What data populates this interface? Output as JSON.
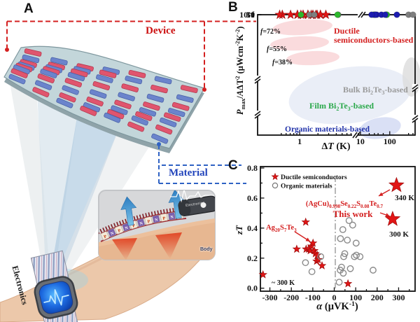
{
  "panels": {
    "a": {
      "label": "A",
      "device": "Device",
      "material": "Material",
      "electronics": "Electronics",
      "inset": {
        "electronics": "Electronics",
        "body": "Body",
        "p": "P",
        "n": "N"
      }
    },
    "b": {
      "label": "B"
    },
    "c": {
      "label": "C"
    }
  },
  "colors": {
    "star_red": "#e11515",
    "film_green": "#2db82d",
    "bulk_gray": "#7f7f7f",
    "organic_blue": "#1c1cb0",
    "label_red": "#cc1111",
    "label_blue": "#2233aa",
    "label_green": "#2aa84a",
    "label_gray": "#9a9a9a",
    "accent_blue": "#2244bb"
  },
  "chart_data": [
    {
      "id": "panel_b",
      "type": "scatter",
      "x_scale": "log-broken",
      "y_scale": "log-broken",
      "xlabel_tokens": [
        [
          "Δ",
          "n"
        ],
        [
          "T",
          "i"
        ],
        [
          " (K)",
          "n"
        ]
      ],
      "ylabel_tokens": [
        [
          "P",
          "i"
        ],
        [
          "max",
          "sub"
        ],
        [
          "/",
          "n"
        ],
        [
          "A",
          "i"
        ],
        [
          "ΔT",
          "n"
        ],
        [
          "2",
          "sup"
        ],
        [
          " (μWcm",
          "n"
        ],
        [
          "-2",
          "sup"
        ],
        [
          "K",
          "n"
        ],
        [
          "-2",
          "sup"
        ],
        [
          ")",
          "n"
        ]
      ],
      "x_ticks": [
        {
          "v": 1,
          "label": "1"
        },
        {
          "v": 10,
          "label": "10"
        },
        {
          "v": 100,
          "label": "100"
        }
      ],
      "y_ticks": [
        {
          "v": 50,
          "label": "50"
        },
        {
          "v": 10,
          "label": "10"
        },
        {
          "v": 1,
          "label": "1"
        },
        {
          "v": 1e-05,
          "label": "10⁻⁵"
        }
      ],
      "series": [
        {
          "name": "ductile-f72",
          "marker": "star",
          "color": "#e11515",
          "points": [
            [
              0.52,
              33
            ],
            [
              1.05,
              33
            ],
            [
              1.55,
              33
            ],
            [
              2.2,
              33
            ]
          ]
        },
        {
          "name": "ductile-f55",
          "marker": "star",
          "color": "#e11515",
          "points": [
            [
              0.47,
              19
            ],
            [
              0.71,
              19
            ],
            [
              0.92,
              19
            ],
            [
              1.14,
              19
            ],
            [
              1.37,
              19
            ],
            [
              1.65,
              19
            ],
            [
              1.94,
              19
            ]
          ]
        },
        {
          "name": "ductile-f38",
          "marker": "star",
          "color": "#e11515",
          "points": [
            [
              0.92,
              11
            ],
            [
              1.14,
              11
            ],
            [
              1.37,
              11
            ],
            [
              1.65,
              11
            ],
            [
              1.85,
              11
            ],
            [
              2.2,
              11
            ],
            [
              2.7,
              11
            ]
          ]
        },
        {
          "name": "bulk-bi2te3",
          "marker": "dot",
          "color": "#7f7f7f",
          "points": [
            [
              1.45,
              1
            ],
            [
              1.74,
              1
            ],
            [
              4.3,
              1
            ],
            [
              200,
              4.4
            ],
            [
              300,
              1.8
            ]
          ]
        },
        {
          "name": "film-bi2te3",
          "marker": "dot",
          "color": "#2db82d",
          "points": [
            [
              1.05,
              0.12
            ],
            [
              4.2,
              2.6
            ],
            [
              32,
              3.1
            ],
            [
              77,
              0.15
            ],
            [
              28,
              0.0017
            ],
            [
              80,
              0.0011
            ]
          ]
        },
        {
          "name": "organic",
          "marker": "dot",
          "color": "#1c1cb0",
          "points": [
            [
              36,
              3e-05
            ],
            [
              31,
              4e-06
            ],
            [
              24,
              1.5e-06
            ],
            [
              52,
              8e-05
            ],
            [
              70,
              7e-05
            ],
            [
              130,
              1.5e-05
            ]
          ]
        }
      ],
      "annotations": {
        "f72": "f=72%",
        "f55": "f=55%",
        "f38": "f=38%",
        "ductile_line1": "Ductile",
        "ductile_line2": "semiconductors-based",
        "bulk_tokens": [
          [
            "Bulk Bi",
            "n"
          ],
          [
            "2",
            "sub"
          ],
          [
            "Te",
            "n"
          ],
          [
            "3",
            "sub"
          ],
          [
            "-based",
            "n"
          ]
        ],
        "film_tokens": [
          [
            "Film  Bi",
            "n"
          ],
          [
            "2",
            "sub"
          ],
          [
            "Te",
            "n"
          ],
          [
            "3",
            "sub"
          ],
          [
            "-based",
            "n"
          ]
        ],
        "organic_label": "Organic materials-based"
      }
    },
    {
      "id": "panel_c",
      "type": "scatter",
      "x_scale": "linear",
      "y_scale": "linear",
      "xlim": [
        -344,
        377
      ],
      "ylim": [
        0,
        0.83
      ],
      "xlabel_tokens": [
        [
          "α",
          "i"
        ],
        [
          " (μVK",
          "n"
        ],
        [
          "-1",
          "sup"
        ],
        [
          ")",
          "n"
        ]
      ],
      "ylabel_tokens": [
        [
          "zT",
          "i"
        ]
      ],
      "x_ticks": [
        {
          "v": -300,
          "label": "-300"
        },
        {
          "v": -200,
          "label": "-200"
        },
        {
          "v": -100,
          "label": "-100"
        },
        {
          "v": 0,
          "label": "0"
        },
        {
          "v": 100,
          "label": "100"
        },
        {
          "v": 200,
          "label": "200"
        },
        {
          "v": 300,
          "label": "300"
        }
      ],
      "y_ticks": [
        {
          "v": 0,
          "label": "0.0"
        },
        {
          "v": 0.2,
          "label": "0.2"
        },
        {
          "v": 0.4,
          "label": "0.4"
        },
        {
          "v": 0.6,
          "label": "0.6"
        },
        {
          "v": 0.8,
          "label": "0.8"
        }
      ],
      "legend": [
        {
          "marker": "star",
          "label": "Ductile semiconductors"
        },
        {
          "marker": "open-circle",
          "label": "Organic materials"
        }
      ],
      "series": [
        {
          "name": "ductile-semiconductors",
          "marker": "star",
          "color": "#e11515",
          "points": [
            [
              -332,
              0.09
            ],
            [
              -175,
              0.26
            ],
            [
              -133,
              0.44
            ],
            [
              -131,
              0.26
            ],
            [
              -120,
              0.26
            ],
            [
              -112,
              0.25
            ],
            [
              -107,
              0.28
            ],
            [
              -99,
              0.3
            ],
            [
              -93,
              0.25
            ],
            [
              -88,
              0.23
            ],
            [
              -82,
              0.18
            ],
            [
              -79,
              0.22
            ],
            [
              -75,
              0.19
            ],
            [
              -57,
              0.15
            ],
            [
              64,
              0.03
            ]
          ]
        },
        {
          "name": "organic-materials",
          "marker": "open-circle",
          "color": "#8a8a8a",
          "points": [
            [
              -134,
              0.17
            ],
            [
              -104,
              0.11
            ],
            [
              -63,
              0.21
            ],
            [
              23,
              0.04
            ],
            [
              28,
              0.12
            ],
            [
              29,
              0.33
            ],
            [
              34,
              0.14
            ],
            [
              40,
              0.39
            ],
            [
              42,
              0.1
            ],
            [
              44,
              0.21
            ],
            [
              49,
              0.23
            ],
            [
              61,
              0.32
            ],
            [
              69,
              0.45
            ],
            [
              75,
              0.13
            ],
            [
              86,
              0.42
            ],
            [
              94,
              0.21
            ],
            [
              102,
              0.3
            ],
            [
              103,
              0.22
            ],
            [
              120,
              0.21
            ],
            [
              181,
              0.12
            ]
          ]
        },
        {
          "name": "this-work",
          "marker": "star-large",
          "color": "#e11515",
          "points": [
            {
              "x": 290,
              "y": 0.685,
              "label": "340 K"
            },
            {
              "x": 272,
              "y": 0.46,
              "label": "300 K"
            }
          ]
        }
      ],
      "annotations": {
        "formula_tokens": [
          [
            "(AgCu)",
            "n"
          ],
          [
            "0.998",
            "sub"
          ],
          [
            "Se",
            "n"
          ],
          [
            "0.22",
            "sub"
          ],
          [
            "S",
            "n"
          ],
          [
            "0.08",
            "sub"
          ],
          [
            "Te",
            "n"
          ],
          [
            "0.7",
            "sub"
          ]
        ],
        "this_work": "This work",
        "ag_tokens": [
          [
            "Ag",
            "n"
          ],
          [
            "20",
            "sub"
          ],
          [
            "S",
            "n"
          ],
          [
            "7",
            "sub"
          ],
          [
            "Te",
            "n"
          ],
          [
            "3",
            "sub"
          ]
        ],
        "approx_300k": "~ 300 K"
      }
    }
  ]
}
